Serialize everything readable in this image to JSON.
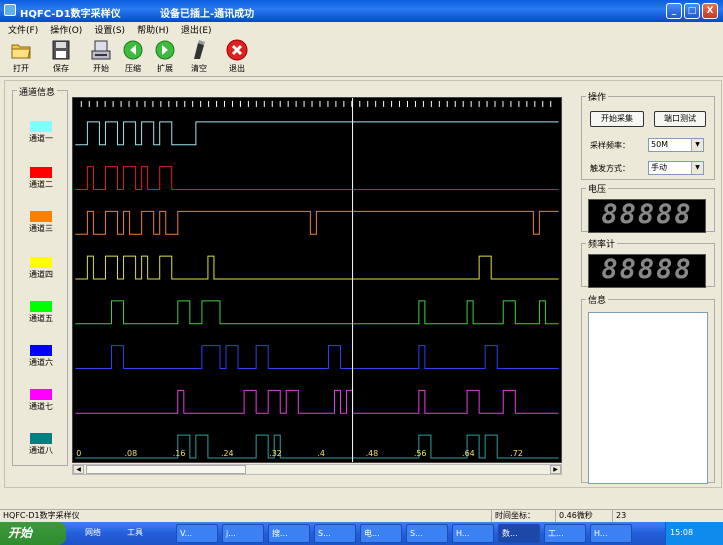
{
  "window": {
    "title": "HQFC-D1数字采样仪",
    "status_message": "设备已插上-通讯成功",
    "controls": [
      "_",
      "□",
      "X"
    ]
  },
  "menu": [
    {
      "label": "文件(F)"
    },
    {
      "label": "操作(O)"
    },
    {
      "label": "设置(S)"
    },
    {
      "label": "帮助(H)"
    },
    {
      "label": "退出(E)"
    }
  ],
  "toolbar": [
    {
      "label": "打开",
      "icon": "folder-open-icon"
    },
    {
      "label": "保存",
      "icon": "floppy-disk-icon"
    },
    {
      "label": "开始",
      "icon": "device-start-icon"
    },
    {
      "label": "压缩",
      "icon": "compress-arrow-icon"
    },
    {
      "label": "扩展",
      "icon": "expand-arrow-icon"
    },
    {
      "label": "清空",
      "icon": "eraser-icon"
    },
    {
      "label": "退出",
      "icon": "exit-x-icon"
    }
  ],
  "channel_panel": {
    "title": "通道信息",
    "channels": [
      {
        "name": "通道一",
        "color": "#80FFFF"
      },
      {
        "name": "通道二",
        "color": "#FF0000"
      },
      {
        "name": "通道三",
        "color": "#FF8000"
      },
      {
        "name": "通道四",
        "color": "#FFFF00"
      },
      {
        "name": "通道五",
        "color": "#00FF00"
      },
      {
        "name": "通道六",
        "color": "#0000FF"
      },
      {
        "name": "通道七",
        "color": "#FF00FF"
      },
      {
        "name": "通道八",
        "color": "#008080"
      }
    ]
  },
  "scope": {
    "time_labels": [
      "0",
      ".08",
      ".16",
      ".24",
      ".32",
      ".4",
      ".48",
      ".56",
      ".64",
      ".72"
    ],
    "cursor_time": 0.46,
    "trace_colors": [
      "#9EE6F0",
      "#E02020",
      "#F08030",
      "#E0E040",
      "#40D040",
      "#3040F0",
      "#E040E0",
      "#30A0A0"
    ],
    "transitions": [
      [
        0.02,
        0.04,
        0.05,
        0.07,
        0.08,
        0.1,
        0.11,
        0.13,
        0.14,
        0.16,
        0.2
      ],
      [
        0.02,
        0.03,
        0.05,
        0.07,
        0.08,
        0.1,
        0.11,
        0.12,
        0.14,
        0.16
      ],
      [
        0.02,
        0.03,
        0.05,
        0.07,
        0.08,
        0.09,
        0.11,
        0.13,
        0.14,
        0.15,
        0.17,
        0.39,
        0.4,
        0.76,
        0.77
      ],
      [
        0.02,
        0.03,
        0.05,
        0.07,
        0.08,
        0.1,
        0.11,
        0.12,
        0.14,
        0.16,
        0.22,
        0.23,
        0.67,
        0.69
      ],
      [
        0.06,
        0.08,
        0.17,
        0.19,
        0.21,
        0.24,
        0.57,
        0.58,
        0.65,
        0.66,
        0.71,
        0.73,
        0.77,
        0.78
      ],
      [
        0.06,
        0.08,
        0.21,
        0.24,
        0.25,
        0.27,
        0.3,
        0.32,
        0.42,
        0.44,
        0.57,
        0.58,
        0.68,
        0.7
      ],
      [
        0.17,
        0.18,
        0.28,
        0.3,
        0.32,
        0.34,
        0.35,
        0.37,
        0.43,
        0.44,
        0.45,
        0.46,
        0.57,
        0.58,
        0.65,
        0.67,
        0.71,
        0.73
      ],
      [
        0.17,
        0.19,
        0.2,
        0.22,
        0.3,
        0.32,
        0.33,
        0.34,
        0.57,
        0.59,
        0.65,
        0.67,
        0.68,
        0.7
      ]
    ]
  },
  "operation_panel": {
    "title": "操作",
    "start_button": "开始采集",
    "port_test_button": "端口测试",
    "sample_rate_label": "采样频率：",
    "sample_rate_value": "50M",
    "trigger_label": "触发方式：",
    "trigger_value": "手动"
  },
  "voltage_panel": {
    "title": "电压",
    "display": "88888"
  },
  "frequency_panel": {
    "title": "频率计",
    "display": "88888"
  },
  "info_panel": {
    "title": "信息"
  },
  "statusbar": {
    "app_name": "HQFC-D1数字采样仪",
    "time_coord_label": "时间坐标：",
    "time_coord_value": "0.46微秒",
    "count": "23"
  },
  "taskbar": {
    "start": "开始",
    "quicklaunch": [
      "网络",
      "工具"
    ],
    "items": [
      "V...",
      "j...",
      "搜...",
      "S...",
      "电...",
      "S...",
      "H...",
      "数...",
      "工...",
      "H..."
    ],
    "clock": "15:08"
  }
}
